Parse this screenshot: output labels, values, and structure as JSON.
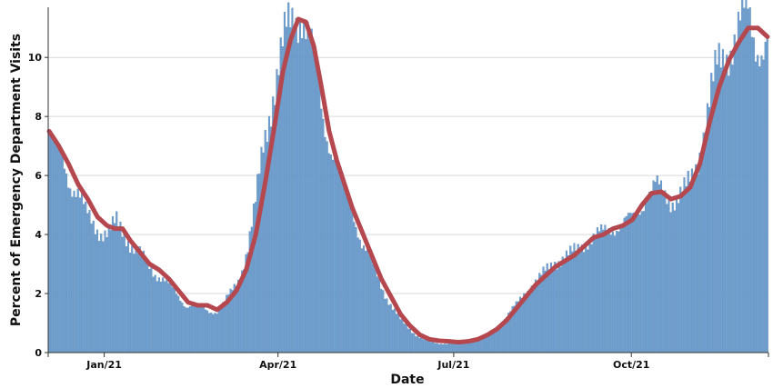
{
  "chart_data": {
    "type": "bar",
    "xlabel": "Date",
    "ylabel": "Percent of Emergency Department Visits",
    "x_start": "2020-12-03",
    "x_end": "2021-12-10",
    "ylim": [
      0,
      11.7
    ],
    "yticks": [
      0,
      2,
      4,
      6,
      8,
      10
    ],
    "xticks": [
      {
        "date": "2021-01-01",
        "label": "Jan/21"
      },
      {
        "date": "2021-04-01",
        "label": "Apr/21"
      },
      {
        "date": "2021-07-01",
        "label": "Jul/21"
      },
      {
        "date": "2021-10-01",
        "label": "Oct/21"
      }
    ],
    "grid": "horizontal",
    "series": [
      {
        "kind": "bar",
        "color": "#6f9fcf",
        "anchors": [
          [
            "2020-12-03",
            7.5
          ],
          [
            "2020-12-06",
            6.7
          ],
          [
            "2020-12-10",
            6.6
          ],
          [
            "2020-12-14",
            5.8
          ],
          [
            "2020-12-18",
            5.4
          ],
          [
            "2020-12-22",
            4.7
          ],
          [
            "2020-12-26",
            4.4
          ],
          [
            "2020-12-30",
            4.1
          ],
          [
            "2021-01-03",
            4.0
          ],
          [
            "2021-01-07",
            4.4
          ],
          [
            "2021-01-11",
            4.1
          ],
          [
            "2021-01-15",
            3.6
          ],
          [
            "2021-01-19",
            3.3
          ],
          [
            "2021-01-23",
            3.0
          ],
          [
            "2021-01-27",
            2.7
          ],
          [
            "2021-01-31",
            2.5
          ],
          [
            "2021-02-04",
            2.2
          ],
          [
            "2021-02-08",
            1.9
          ],
          [
            "2021-02-12",
            1.6
          ],
          [
            "2021-02-16",
            1.6
          ],
          [
            "2021-02-20",
            1.5
          ],
          [
            "2021-02-24",
            1.4
          ],
          [
            "2021-02-28",
            1.4
          ],
          [
            "2021-03-04",
            1.7
          ],
          [
            "2021-03-08",
            2.1
          ],
          [
            "2021-03-12",
            2.6
          ],
          [
            "2021-03-16",
            3.6
          ],
          [
            "2021-03-20",
            5.0
          ],
          [
            "2021-03-24",
            7.0
          ],
          [
            "2021-03-28",
            8.5
          ],
          [
            "2021-04-01",
            9.7
          ],
          [
            "2021-04-05",
            10.8
          ],
          [
            "2021-04-09",
            11.4
          ],
          [
            "2021-04-13",
            11.6
          ],
          [
            "2021-04-16",
            10.8
          ],
          [
            "2021-04-20",
            9.6
          ],
          [
            "2021-04-24",
            8.0
          ],
          [
            "2021-04-28",
            7.0
          ],
          [
            "2021-05-02",
            6.2
          ],
          [
            "2021-05-06",
            5.3
          ],
          [
            "2021-05-10",
            4.7
          ],
          [
            "2021-05-14",
            3.7
          ],
          [
            "2021-05-18",
            3.2
          ],
          [
            "2021-05-22",
            2.6
          ],
          [
            "2021-05-26",
            2.0
          ],
          [
            "2021-05-30",
            1.5
          ],
          [
            "2021-06-03",
            1.1
          ],
          [
            "2021-06-07",
            0.85
          ],
          [
            "2021-06-11",
            0.6
          ],
          [
            "2021-06-15",
            0.45
          ],
          [
            "2021-06-19",
            0.35
          ],
          [
            "2021-06-23",
            0.3
          ],
          [
            "2021-06-27",
            0.3
          ],
          [
            "2021-07-01",
            0.3
          ],
          [
            "2021-07-05",
            0.35
          ],
          [
            "2021-07-09",
            0.4
          ],
          [
            "2021-07-13",
            0.45
          ],
          [
            "2021-07-17",
            0.55
          ],
          [
            "2021-07-21",
            0.75
          ],
          [
            "2021-07-25",
            1.0
          ],
          [
            "2021-07-29",
            1.3
          ],
          [
            "2021-08-02",
            1.6
          ],
          [
            "2021-08-06",
            2.0
          ],
          [
            "2021-08-10",
            2.3
          ],
          [
            "2021-08-14",
            2.5
          ],
          [
            "2021-08-18",
            2.8
          ],
          [
            "2021-08-22",
            3.1
          ],
          [
            "2021-08-26",
            3.2
          ],
          [
            "2021-08-30",
            3.3
          ],
          [
            "2021-09-03",
            3.5
          ],
          [
            "2021-09-07",
            3.8
          ],
          [
            "2021-09-11",
            3.9
          ],
          [
            "2021-09-15",
            4.0
          ],
          [
            "2021-09-19",
            4.2
          ],
          [
            "2021-09-23",
            4.3
          ],
          [
            "2021-09-27",
            4.4
          ],
          [
            "2021-10-01",
            4.5
          ],
          [
            "2021-10-05",
            4.9
          ],
          [
            "2021-10-09",
            5.4
          ],
          [
            "2021-10-13",
            5.6
          ],
          [
            "2021-10-17",
            5.4
          ],
          [
            "2021-10-21",
            5.2
          ],
          [
            "2021-10-25",
            5.3
          ],
          [
            "2021-10-29",
            5.5
          ],
          [
            "2021-11-02",
            6.0
          ],
          [
            "2021-11-06",
            7.2
          ],
          [
            "2021-11-10",
            8.5
          ],
          [
            "2021-11-14",
            9.6
          ],
          [
            "2021-11-18",
            10.1
          ],
          [
            "2021-11-22",
            10.6
          ],
          [
            "2021-11-26",
            11.1
          ],
          [
            "2021-11-30",
            11.5
          ],
          [
            "2021-12-04",
            10.6
          ],
          [
            "2021-12-08",
            10.3
          ],
          [
            "2021-12-10",
            10.5
          ]
        ]
      },
      {
        "kind": "line",
        "color": "#b5474f",
        "points": [
          [
            "2020-12-03",
            7.5
          ],
          [
            "2020-12-08",
            7.0
          ],
          [
            "2020-12-13",
            6.4
          ],
          [
            "2020-12-18",
            5.7
          ],
          [
            "2020-12-23",
            5.2
          ],
          [
            "2020-12-28",
            4.6
          ],
          [
            "2021-01-02",
            4.3
          ],
          [
            "2021-01-06",
            4.2
          ],
          [
            "2021-01-10",
            4.2
          ],
          [
            "2021-01-14",
            3.8
          ],
          [
            "2021-01-19",
            3.4
          ],
          [
            "2021-01-24",
            3.0
          ],
          [
            "2021-01-29",
            2.8
          ],
          [
            "2021-02-03",
            2.5
          ],
          [
            "2021-02-08",
            2.1
          ],
          [
            "2021-02-13",
            1.7
          ],
          [
            "2021-02-18",
            1.6
          ],
          [
            "2021-02-23",
            1.6
          ],
          [
            "2021-02-28",
            1.45
          ],
          [
            "2021-03-05",
            1.7
          ],
          [
            "2021-03-10",
            2.1
          ],
          [
            "2021-03-15",
            2.8
          ],
          [
            "2021-03-20",
            4.0
          ],
          [
            "2021-03-25",
            5.8
          ],
          [
            "2021-03-30",
            7.8
          ],
          [
            "2021-04-03",
            9.5
          ],
          [
            "2021-04-07",
            10.6
          ],
          [
            "2021-04-11",
            11.3
          ],
          [
            "2021-04-15",
            11.2
          ],
          [
            "2021-04-19",
            10.4
          ],
          [
            "2021-04-23",
            9.0
          ],
          [
            "2021-04-27",
            7.5
          ],
          [
            "2021-05-01",
            6.5
          ],
          [
            "2021-05-05",
            5.7
          ],
          [
            "2021-05-09",
            4.9
          ],
          [
            "2021-05-14",
            4.1
          ],
          [
            "2021-05-19",
            3.3
          ],
          [
            "2021-05-24",
            2.5
          ],
          [
            "2021-05-29",
            1.9
          ],
          [
            "2021-06-03",
            1.3
          ],
          [
            "2021-06-08",
            0.9
          ],
          [
            "2021-06-13",
            0.6
          ],
          [
            "2021-06-18",
            0.45
          ],
          [
            "2021-06-23",
            0.4
          ],
          [
            "2021-06-28",
            0.38
          ],
          [
            "2021-07-03",
            0.35
          ],
          [
            "2021-07-08",
            0.38
          ],
          [
            "2021-07-13",
            0.45
          ],
          [
            "2021-07-18",
            0.6
          ],
          [
            "2021-07-23",
            0.8
          ],
          [
            "2021-07-28",
            1.1
          ],
          [
            "2021-08-02",
            1.5
          ],
          [
            "2021-08-07",
            1.9
          ],
          [
            "2021-08-12",
            2.3
          ],
          [
            "2021-08-17",
            2.6
          ],
          [
            "2021-08-22",
            2.9
          ],
          [
            "2021-08-27",
            3.1
          ],
          [
            "2021-09-01",
            3.3
          ],
          [
            "2021-09-06",
            3.6
          ],
          [
            "2021-09-11",
            3.9
          ],
          [
            "2021-09-16",
            4.0
          ],
          [
            "2021-09-21",
            4.2
          ],
          [
            "2021-09-26",
            4.3
          ],
          [
            "2021-10-01",
            4.5
          ],
          [
            "2021-10-06",
            5.0
          ],
          [
            "2021-10-11",
            5.4
          ],
          [
            "2021-10-16",
            5.45
          ],
          [
            "2021-10-21",
            5.2
          ],
          [
            "2021-10-26",
            5.3
          ],
          [
            "2021-10-31",
            5.6
          ],
          [
            "2021-11-05",
            6.4
          ],
          [
            "2021-11-10",
            7.8
          ],
          [
            "2021-11-15",
            9.0
          ],
          [
            "2021-11-20",
            9.9
          ],
          [
            "2021-11-25",
            10.5
          ],
          [
            "2021-11-30",
            11.0
          ],
          [
            "2021-12-05",
            11.0
          ],
          [
            "2021-12-10",
            10.7
          ]
        ]
      }
    ]
  }
}
